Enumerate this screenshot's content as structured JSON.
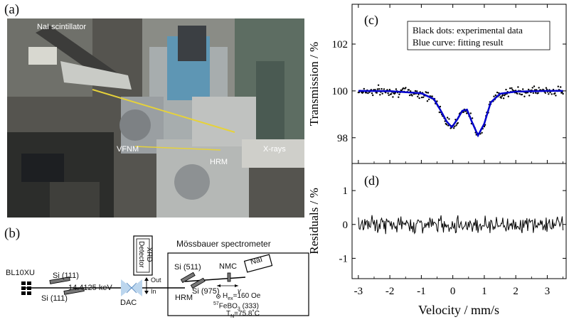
{
  "panel_a": {
    "label": "(a)",
    "annotations": {
      "scintillator": "NaI scintillator",
      "vfnm": "VFNM",
      "hrm": "HRM",
      "xrays": "X-rays"
    }
  },
  "panel_b": {
    "label": "(b)",
    "beamline": "BL10XU",
    "si111_top": "Si (111)",
    "si111_bottom": "Si (111)",
    "energy": "14.4125 keV",
    "dac": "DAC",
    "xrd_line1": "XRD",
    "xrd_line2": "Detector",
    "out": "Out",
    "in": "In",
    "spectrometer_title": "Mössbauer spectrometer",
    "si511": "Si (511)",
    "si975": "Si (975)",
    "hrm": "HRM",
    "nmc": "NMC",
    "nai": "NaI",
    "v": "v",
    "h_ex": "H",
    "h_ex_sub": "ex",
    "h_ex_val": "=160 Oe",
    "sample_sup": "57",
    "sample": "FeBO",
    "sample_sub": "3",
    "sample_refl": " (333)",
    "tn": "T",
    "tn_sub": "N",
    "tn_val": "=75.8˚C"
  },
  "panel_c": {
    "label": "(c)",
    "ylabel": "Transmission / %",
    "legend_line1": "Black dots: experimental data",
    "legend_line2": "Blue curve: fitting result",
    "ytick_labels": [
      "102",
      "100",
      "98"
    ]
  },
  "panel_d": {
    "label": "(d)",
    "ylabel": "Residuals / %",
    "ytick_labels": [
      "1",
      "0",
      "-1"
    ]
  },
  "shared_xlabel": "Velocity / mm/s",
  "xtick_labels": [
    "-3",
    "-2",
    "-1",
    "0",
    "1",
    "2",
    "3"
  ],
  "chart_data": [
    {
      "type": "scatter",
      "panel": "c",
      "xlabel": "Velocity / mm/s",
      "ylabel": "Transmission / %",
      "xlim": [
        -3.2,
        3.6
      ],
      "ylim": [
        96.9,
        103.7
      ],
      "series": [
        {
          "name": "Black dots: experimental data",
          "kind": "scatter",
          "color": "#000000",
          "baseline": 100.0,
          "dips": [
            {
              "center": -0.03,
              "depth": 1.6
            },
            {
              "center": 0.8,
              "depth": 1.95
            }
          ],
          "noise": 0.3
        },
        {
          "name": "Blue curve: fitting result",
          "kind": "line",
          "color": "#0000cc",
          "x": [
            -3.0,
            -2.0,
            -1.0,
            -0.6,
            -0.4,
            -0.2,
            -0.03,
            0.15,
            0.3,
            0.45,
            0.6,
            0.8,
            1.0,
            1.2,
            1.5,
            2.0,
            3.0,
            3.5
          ],
          "y": [
            100.0,
            99.99,
            99.9,
            99.65,
            99.2,
            98.7,
            98.45,
            98.8,
            99.15,
            99.2,
            98.7,
            98.1,
            98.6,
            99.5,
            99.88,
            99.97,
            100.0,
            100.0
          ]
        }
      ]
    },
    {
      "type": "line",
      "panel": "d",
      "xlabel": "Velocity / mm/s",
      "ylabel": "Residuals / %",
      "xlim": [
        -3.2,
        3.6
      ],
      "ylim": [
        -1.6,
        1.8
      ],
      "series": [
        {
          "kind": "line",
          "color": "#000000",
          "amplitude": 0.35,
          "x_range": [
            -3.0,
            3.5
          ]
        }
      ]
    }
  ]
}
